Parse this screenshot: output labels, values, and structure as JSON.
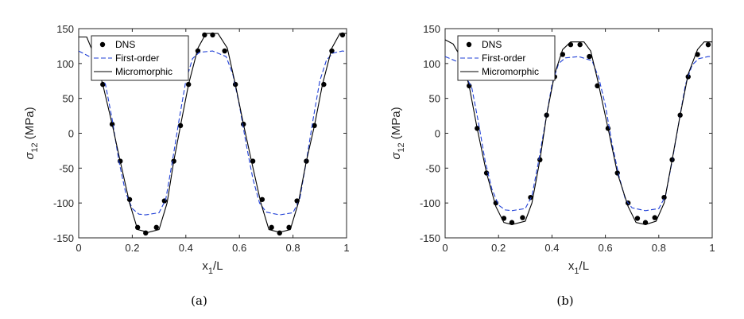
{
  "chart_data": [
    {
      "type": "line",
      "caption": "(a)",
      "xlabel_main": "x",
      "xlabel_sub": "1",
      "xlabel_suffix": "/L",
      "ylabel_main": "σ",
      "ylabel_sub": "12",
      "ylabel_suffix": " (MPa)",
      "xlim": [
        0,
        1
      ],
      "ylim": [
        -150,
        150
      ],
      "xticks": [
        0,
        0.2,
        0.4,
        0.6,
        0.8,
        1
      ],
      "yticks": [
        -150,
        -100,
        -50,
        0,
        50,
        100,
        150
      ],
      "xtick_labels": [
        "0",
        "0.2",
        "0.4",
        "0.6",
        "0.8",
        "1"
      ],
      "ytick_labels": [
        "-150",
        "-100",
        "-50",
        "0",
        "50",
        "100",
        "150"
      ],
      "legend_position": "top-left",
      "series": [
        {
          "name": "DNS",
          "style": "markers",
          "color": "#000000",
          "points": [
            [
              0.09,
              70
            ],
            [
              0.125,
              13
            ],
            [
              0.155,
              -40
            ],
            [
              0.19,
              -95
            ],
            [
              0.22,
              -135
            ],
            [
              0.25,
              -143
            ],
            [
              0.29,
              -135
            ],
            [
              0.32,
              -97
            ],
            [
              0.355,
              -40
            ],
            [
              0.38,
              11
            ],
            [
              0.41,
              70
            ],
            [
              0.445,
              118
            ],
            [
              0.47,
              141
            ],
            [
              0.5,
              141
            ],
            [
              0.545,
              118
            ],
            [
              0.585,
              70
            ],
            [
              0.615,
              13
            ],
            [
              0.65,
              -40
            ],
            [
              0.685,
              -95
            ],
            [
              0.72,
              -135
            ],
            [
              0.75,
              -143
            ],
            [
              0.785,
              -135
            ],
            [
              0.815,
              -97
            ],
            [
              0.85,
              -40
            ],
            [
              0.88,
              11
            ],
            [
              0.915,
              70
            ],
            [
              0.945,
              118
            ],
            [
              0.985,
              141
            ]
          ]
        },
        {
          "name": "First-order",
          "style": "dashed",
          "color": "#1f3fd6",
          "points": [
            [
              0.0,
              118
            ],
            [
              0.05,
              108
            ],
            [
              0.1,
              70
            ],
            [
              0.125,
              20
            ],
            [
              0.15,
              -40
            ],
            [
              0.175,
              -85
            ],
            [
              0.2,
              -108
            ],
            [
              0.225,
              -116
            ],
            [
              0.25,
              -117
            ],
            [
              0.3,
              -114
            ],
            [
              0.325,
              -95
            ],
            [
              0.35,
              -40
            ],
            [
              0.375,
              20
            ],
            [
              0.4,
              75
            ],
            [
              0.425,
              107
            ],
            [
              0.45,
              116
            ],
            [
              0.5,
              118
            ],
            [
              0.55,
              110
            ],
            [
              0.575,
              85
            ],
            [
              0.6,
              40
            ],
            [
              0.625,
              -15
            ],
            [
              0.65,
              -65
            ],
            [
              0.675,
              -100
            ],
            [
              0.7,
              -113
            ],
            [
              0.75,
              -117
            ],
            [
              0.8,
              -114
            ],
            [
              0.825,
              -95
            ],
            [
              0.85,
              -40
            ],
            [
              0.875,
              20
            ],
            [
              0.9,
              75
            ],
            [
              0.925,
              105
            ],
            [
              0.95,
              115
            ],
            [
              0.985,
              118
            ],
            [
              1.0,
              117
            ]
          ]
        },
        {
          "name": "Micromorphic",
          "style": "solid",
          "color": "#000000",
          "points": [
            [
              0.0,
              138
            ],
            [
              0.03,
              138
            ],
            [
              0.06,
              110
            ],
            [
              0.09,
              70
            ],
            [
              0.125,
              13
            ],
            [
              0.155,
              -40
            ],
            [
              0.19,
              -100
            ],
            [
              0.22,
              -138
            ],
            [
              0.26,
              -142
            ],
            [
              0.3,
              -138
            ],
            [
              0.33,
              -100
            ],
            [
              0.355,
              -40
            ],
            [
              0.38,
              11
            ],
            [
              0.41,
              70
            ],
            [
              0.445,
              122
            ],
            [
              0.475,
              143
            ],
            [
              0.52,
              143
            ],
            [
              0.555,
              122
            ],
            [
              0.585,
              70
            ],
            [
              0.615,
              13
            ],
            [
              0.645,
              -40
            ],
            [
              0.68,
              -100
            ],
            [
              0.71,
              -138
            ],
            [
              0.75,
              -142
            ],
            [
              0.79,
              -138
            ],
            [
              0.82,
              -100
            ],
            [
              0.85,
              -40
            ],
            [
              0.88,
              11
            ],
            [
              0.91,
              70
            ],
            [
              0.945,
              122
            ],
            [
              0.975,
              143
            ],
            [
              1.0,
              143
            ]
          ]
        }
      ]
    },
    {
      "type": "line",
      "caption": "(b)",
      "xlabel_main": "x",
      "xlabel_sub": "1",
      "xlabel_suffix": "/L",
      "ylabel_main": "σ",
      "ylabel_sub": "12",
      "ylabel_suffix": " (MPa)",
      "xlim": [
        0,
        1
      ],
      "ylim": [
        -150,
        150
      ],
      "xticks": [
        0,
        0.2,
        0.4,
        0.6,
        0.8,
        1
      ],
      "yticks": [
        -150,
        -100,
        -50,
        0,
        50,
        100,
        150
      ],
      "xtick_labels": [
        "0",
        "0.2",
        "0.4",
        "0.6",
        "0.8",
        "1"
      ],
      "ytick_labels": [
        "-150",
        "-100",
        "-50",
        "0",
        "50",
        "100",
        "150"
      ],
      "legend_position": "top-left",
      "series": [
        {
          "name": "DNS",
          "style": "markers",
          "color": "#000000",
          "points": [
            [
              0.09,
              68
            ],
            [
              0.12,
              7
            ],
            [
              0.155,
              -57
            ],
            [
              0.19,
              -100
            ],
            [
              0.22,
              -122
            ],
            [
              0.25,
              -128
            ],
            [
              0.29,
              -121
            ],
            [
              0.32,
              -92
            ],
            [
              0.355,
              -38
            ],
            [
              0.38,
              26
            ],
            [
              0.41,
              81
            ],
            [
              0.44,
              113
            ],
            [
              0.47,
              127
            ],
            [
              0.505,
              127
            ],
            [
              0.54,
              110
            ],
            [
              0.57,
              68
            ],
            [
              0.61,
              7
            ],
            [
              0.645,
              -57
            ],
            [
              0.685,
              -100
            ],
            [
              0.72,
              -122
            ],
            [
              0.75,
              -128
            ],
            [
              0.785,
              -121
            ],
            [
              0.82,
              -92
            ],
            [
              0.85,
              -38
            ],
            [
              0.88,
              26
            ],
            [
              0.91,
              81
            ],
            [
              0.945,
              113
            ],
            [
              0.985,
              127
            ]
          ]
        },
        {
          "name": "First-order",
          "style": "dashed",
          "color": "#1f3fd6",
          "points": [
            [
              0.0,
              110
            ],
            [
              0.05,
              102
            ],
            [
              0.1,
              65
            ],
            [
              0.125,
              15
            ],
            [
              0.15,
              -40
            ],
            [
              0.175,
              -80
            ],
            [
              0.2,
              -103
            ],
            [
              0.225,
              -110
            ],
            [
              0.25,
              -111
            ],
            [
              0.3,
              -108
            ],
            [
              0.325,
              -90
            ],
            [
              0.35,
              -40
            ],
            [
              0.375,
              15
            ],
            [
              0.4,
              70
            ],
            [
              0.425,
              100
            ],
            [
              0.45,
              108
            ],
            [
              0.5,
              110
            ],
            [
              0.55,
              104
            ],
            [
              0.575,
              80
            ],
            [
              0.6,
              40
            ],
            [
              0.625,
              -15
            ],
            [
              0.65,
              -60
            ],
            [
              0.675,
              -95
            ],
            [
              0.7,
              -107
            ],
            [
              0.75,
              -111
            ],
            [
              0.8,
              -108
            ],
            [
              0.825,
              -90
            ],
            [
              0.85,
              -40
            ],
            [
              0.875,
              15
            ],
            [
              0.9,
              70
            ],
            [
              0.925,
              98
            ],
            [
              0.95,
              107
            ],
            [
              0.985,
              110
            ],
            [
              1.0,
              110
            ]
          ]
        },
        {
          "name": "Micromorphic",
          "style": "solid",
          "color": "#000000",
          "points": [
            [
              0.0,
              134
            ],
            [
              0.03,
              128
            ],
            [
              0.06,
              108
            ],
            [
              0.09,
              68
            ],
            [
              0.12,
              7
            ],
            [
              0.155,
              -57
            ],
            [
              0.19,
              -105
            ],
            [
              0.22,
              -128
            ],
            [
              0.25,
              -131
            ],
            [
              0.3,
              -126
            ],
            [
              0.325,
              -100
            ],
            [
              0.355,
              -38
            ],
            [
              0.38,
              26
            ],
            [
              0.41,
              85
            ],
            [
              0.44,
              120
            ],
            [
              0.47,
              131
            ],
            [
              0.52,
              131
            ],
            [
              0.545,
              118
            ],
            [
              0.57,
              78
            ],
            [
              0.61,
              7
            ],
            [
              0.645,
              -57
            ],
            [
              0.685,
              -105
            ],
            [
              0.715,
              -128
            ],
            [
              0.75,
              -131
            ],
            [
              0.79,
              -126
            ],
            [
              0.82,
              -100
            ],
            [
              0.85,
              -38
            ],
            [
              0.88,
              26
            ],
            [
              0.91,
              85
            ],
            [
              0.945,
              120
            ],
            [
              0.97,
              131
            ],
            [
              1.0,
              131
            ]
          ]
        }
      ]
    }
  ]
}
